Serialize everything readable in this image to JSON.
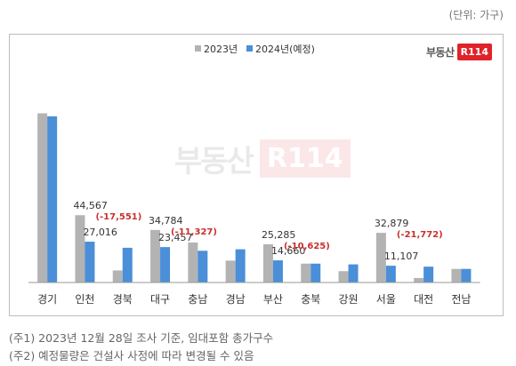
{
  "unit_label": "(단위: 가구)",
  "logo": {
    "text": "부동산",
    "badge": "R114"
  },
  "chart_data": {
    "type": "bar",
    "title": "",
    "xlabel": "",
    "ylabel": "",
    "ylim": [
      0,
      120000
    ],
    "grid": false,
    "legend_position": "top-center",
    "categories": [
      "경기",
      "인천",
      "경북",
      "대구",
      "충남",
      "경남",
      "부산",
      "충북",
      "강원",
      "서울",
      "대전",
      "전남"
    ],
    "series": [
      {
        "name": "2023년",
        "color": "#b3b3b3",
        "values": [
          112000,
          44567,
          8000,
          34784,
          26500,
          14500,
          25285,
          12500,
          7500,
          32879,
          3000,
          9000
        ]
      },
      {
        "name": "2024년(예정)",
        "color": "#4a8fd8",
        "values": [
          110000,
          27016,
          23000,
          23457,
          21000,
          22000,
          14660,
          12500,
          12000,
          11107,
          10500,
          9000
        ]
      }
    ],
    "data_labels": [
      {
        "category": "인천",
        "value2023": "44,567",
        "value2024": "27,016",
        "change": "(-17,551)"
      },
      {
        "category": "대구",
        "value2023": "34,784",
        "value2024": "23,457",
        "change": "(-11,327)"
      },
      {
        "category": "부산",
        "value2023": "25,285",
        "value2024": "14,660",
        "change": "(-10,625)"
      },
      {
        "category": "서울",
        "value2023": "32,879",
        "value2024": "11,107",
        "change": "(-21,772)"
      }
    ]
  },
  "footnotes": [
    "(주1) 2023년 12월 28일 조사 기준, 임대포함 총가구수",
    "(주2) 예정물량은 건설사 사정에 따라 변경될 수 있음"
  ]
}
